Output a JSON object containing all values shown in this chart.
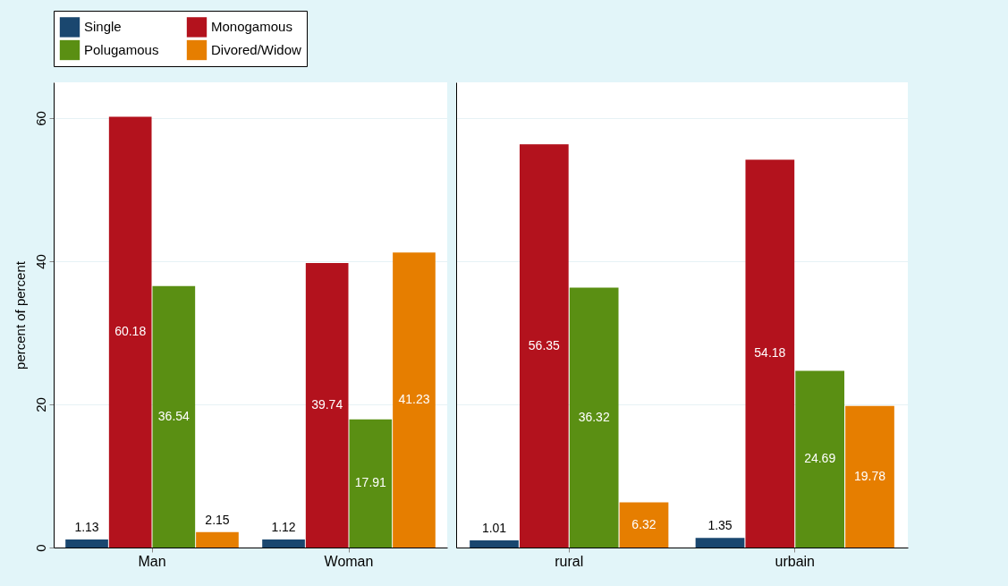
{
  "chart_data": [
    {
      "type": "bar",
      "categories": [
        "Man",
        "Woman"
      ],
      "ylabel": "percent of percent",
      "ylim": [
        0,
        65
      ],
      "yticks": [
        0,
        20,
        40,
        60
      ],
      "grid": "y",
      "legend": "top",
      "data_labels": true,
      "series": [
        {
          "name": "Single",
          "color": "#1a476f",
          "values": [
            1.13,
            1.12
          ]
        },
        {
          "name": "Monogamous",
          "color": "#b3121d",
          "values": [
            60.18,
            39.74
          ]
        },
        {
          "name": "Polugamous",
          "color": "#5a8f13",
          "values": [
            36.54,
            17.91
          ]
        },
        {
          "name": "Divored/Widow",
          "color": "#e67e00",
          "values": [
            2.15,
            41.23
          ]
        }
      ]
    },
    {
      "type": "bar",
      "categories": [
        "rural",
        "urbain"
      ],
      "ylim": [
        0,
        65
      ],
      "yticks": [
        0,
        20,
        40,
        60
      ],
      "grid": "y",
      "legend": false,
      "tick_labels": "x",
      "data_labels": true,
      "series": [
        {
          "color": "#1a476f",
          "values": [
            1.01,
            1.35
          ]
        },
        {
          "color": "#b3121d",
          "values": [
            56.35,
            54.18
          ]
        },
        {
          "color": "#5a8f13",
          "values": [
            36.32,
            24.69
          ]
        },
        {
          "color": "#e67e00",
          "values": [
            6.32,
            19.78
          ]
        }
      ]
    }
  ]
}
